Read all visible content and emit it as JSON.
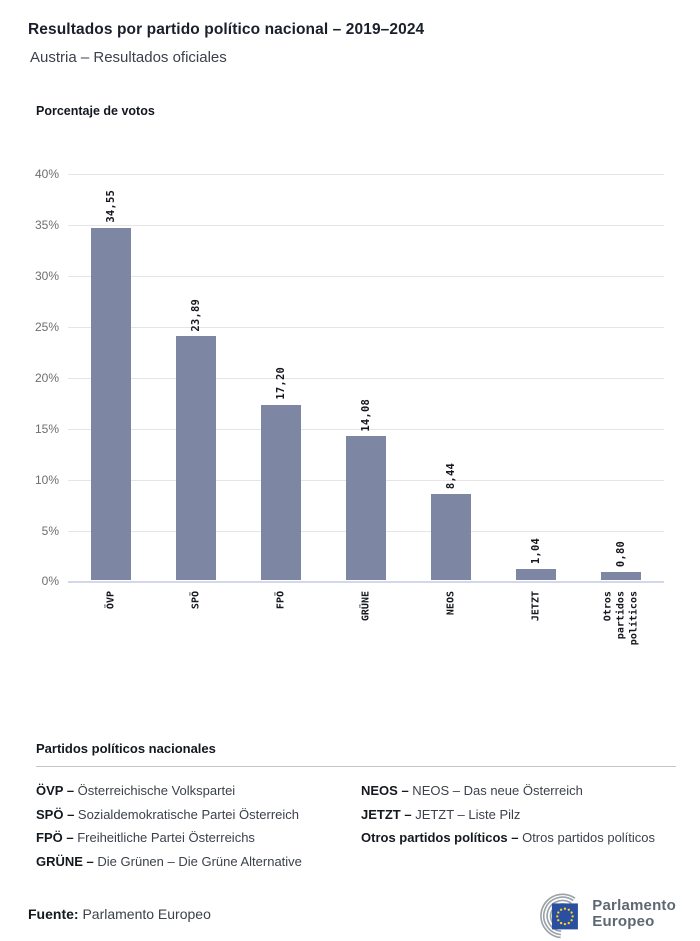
{
  "header": {
    "title": "Resultados por partido político nacional – 2019–2024",
    "subtitle": "Austria – Resultados oficiales"
  },
  "chart": {
    "axis_title": "Porcentaje de votos"
  },
  "chart_data": {
    "type": "bar",
    "title": "Porcentaje de votos",
    "categories": [
      "ÖVP",
      "SPÖ",
      "FPÖ",
      "GRÜNE",
      "NEOS",
      "JETZT",
      "Otros partidos políticos"
    ],
    "values": [
      34.55,
      23.89,
      17.2,
      14.08,
      8.44,
      1.04,
      0.8
    ],
    "value_labels": [
      "34,55",
      "23,89",
      "17,20",
      "14,08",
      "8,44",
      "1,04",
      "0,80"
    ],
    "ylabel": "Porcentaje de votos",
    "xlabel": "",
    "ylim": [
      0,
      40
    ],
    "yticks": [
      0,
      5,
      10,
      15,
      20,
      25,
      30,
      35,
      40
    ],
    "ytick_labels": [
      "0%",
      "5%",
      "10%",
      "15%",
      "20%",
      "25%",
      "30%",
      "35%",
      "40%"
    ],
    "grid": true,
    "legend_position": "none",
    "bar_color": "#7d87a3"
  },
  "legend": {
    "title": "Partidos políticos nacionales",
    "columns": [
      [
        {
          "abbr": "ÖVP –",
          "name": "Österreichische Volkspartei"
        },
        {
          "abbr": "SPÖ –",
          "name": "Sozialdemokratische Partei Österreich"
        },
        {
          "abbr": "FPÖ –",
          "name": "Freiheitliche Partei Österreichs"
        },
        {
          "abbr": "GRÜNE –",
          "name": "Die Grünen – Die Grüne Alternative"
        }
      ],
      [
        {
          "abbr": "NEOS –",
          "name": "NEOS – Das neue Österreich"
        },
        {
          "abbr": "JETZT –",
          "name": "JETZT – Liste Pilz"
        },
        {
          "abbr": "Otros partidos políticos –",
          "name": "Otros partidos políticos"
        }
      ]
    ]
  },
  "footer": {
    "source_label": "Fuente:",
    "source_value": "Parlamento Europeo",
    "logo_line1": "Parlamento",
    "logo_line2": "Europeo"
  },
  "colors": {
    "bar": "#7d87a3",
    "grid": "#e5e5e7",
    "baseline": "#d2d7ea",
    "eu_blue": "#2b4fa0",
    "star_yellow": "#ffd617",
    "hemicycle_gray": "#99a1a9",
    "logo_gray": "#5d6873"
  }
}
